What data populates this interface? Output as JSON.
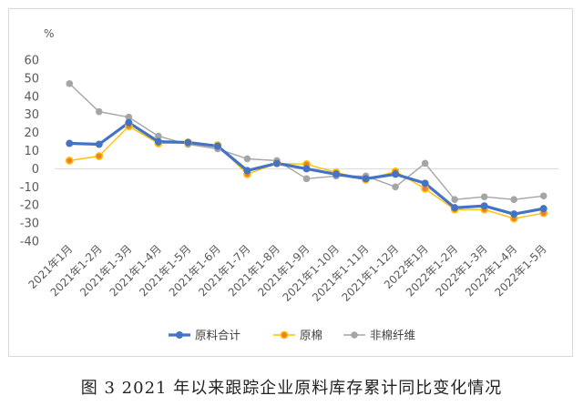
{
  "caption": "图 3   2021 年以来跟踪企业原料库存累计同比变化情况",
  "chart_data": {
    "type": "line",
    "unit": "%",
    "categories": [
      "2021年1月",
      "2021年1-2月",
      "2021年1-3月",
      "2021年1-4月",
      "2021年1-5月",
      "2021年1-6月",
      "2021年1-7月",
      "2021年1-8月",
      "2021年1-9月",
      "2021年1-10月",
      "2021年1-11月",
      "2021年1-12月",
      "2022年1月",
      "2022年1-2月",
      "2022年1-3月",
      "2022年1-4月",
      "2022年1-5月"
    ],
    "ylim": [
      -40,
      60
    ],
    "yticks": [
      60,
      50,
      40,
      30,
      20,
      10,
      0,
      -10,
      -20,
      -30,
      -40
    ],
    "grid": false,
    "legend_position": "bottom",
    "series": [
      {
        "name": "原料合计",
        "color": "#4472c4",
        "values": [
          14,
          13.5,
          25.5,
          15,
          14.5,
          12.5,
          -1,
          3,
          0,
          -3,
          -5.5,
          -3,
          -8,
          -21.5,
          -20.5,
          -25,
          -22
        ]
      },
      {
        "name": "原棉",
        "color": "#ffc000",
        "values": [
          4.5,
          7,
          23.5,
          14,
          14.5,
          13,
          -3,
          3,
          2.5,
          -2,
          -6,
          -1.5,
          -11,
          -22.5,
          -22.5,
          -27.5,
          -24.5
        ]
      },
      {
        "name": "非棉纤维",
        "color": "#a5a5a5",
        "values": [
          47,
          31.5,
          28.5,
          18,
          13.5,
          11,
          5.5,
          4.5,
          -5.5,
          -4,
          -4,
          -10,
          3,
          -17,
          -15.5,
          -17,
          -15
        ]
      }
    ]
  }
}
